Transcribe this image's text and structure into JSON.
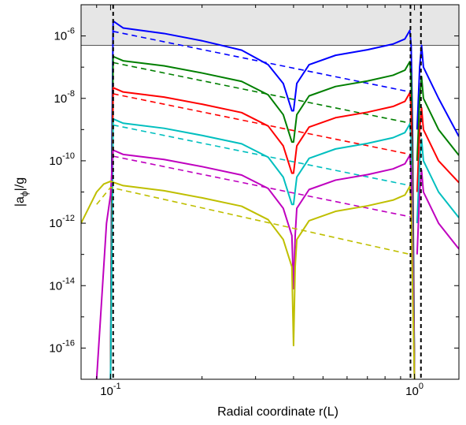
{
  "chart_data": {
    "type": "line",
    "title": "",
    "xlabel": "Radial coordinate r(L)",
    "ylabel": {
      "main": "|a",
      "sub": "ϕ",
      "tail": "|/g"
    },
    "xscale": "log",
    "yscale": "log",
    "xlim": [
      0.08,
      1.4
    ],
    "ylim": [
      1e-17,
      1e-05
    ],
    "xticks": [
      {
        "value": 0.1,
        "base": "10",
        "exp": "-1"
      },
      {
        "value": 1,
        "base": "10",
        "exp": "0"
      }
    ],
    "yticks": [
      {
        "value": 1e-06,
        "base": "10",
        "exp": "-6"
      },
      {
        "value": 1e-08,
        "base": "10",
        "exp": "-8"
      },
      {
        "value": 1e-10,
        "base": "10",
        "exp": "-10"
      },
      {
        "value": 1e-12,
        "base": "10",
        "exp": "-12"
      },
      {
        "value": 1e-14,
        "base": "10",
        "exp": "-14"
      },
      {
        "value": 1e-16,
        "base": "10",
        "exp": "-16"
      }
    ],
    "shaded_region": {
      "y_from": 5e-07,
      "y_to": 1e-05,
      "color": "#e6e6e6"
    },
    "vertical_lines": [
      0.102,
      0.97,
      1.05
    ],
    "series": [
      {
        "color": "#0000ff",
        "style": "solid",
        "points": [
          [
            0.1,
            1e-17
          ],
          [
            0.101,
            2e-10
          ],
          [
            0.102,
            3e-06
          ],
          [
            0.11,
            1.8e-06
          ],
          [
            0.15,
            1.2e-06
          ],
          [
            0.2,
            7e-07
          ],
          [
            0.27,
            3.5e-07
          ],
          [
            0.33,
            1.2e-07
          ],
          [
            0.37,
            3e-08
          ],
          [
            0.395,
            4e-09
          ],
          [
            0.4,
            4e-09
          ],
          [
            0.41,
            3e-08
          ],
          [
            0.45,
            1.2e-07
          ],
          [
            0.55,
            2.4e-07
          ],
          [
            0.7,
            3.6e-07
          ],
          [
            0.85,
            5.5e-07
          ],
          [
            0.93,
            8e-07
          ],
          [
            0.965,
            1.5e-06
          ],
          [
            0.975,
            5e-07
          ],
          [
            0.985,
            1e-09
          ],
          [
            1.0,
            1e-17
          ]
        ]
      },
      {
        "color": "#0000ff",
        "style": "solid",
        "points": [
          [
            1.02,
            1e-09
          ],
          [
            1.04,
            1e-07
          ],
          [
            1.055,
            5e-07
          ],
          [
            1.07,
            1e-07
          ],
          [
            1.2,
            1e-08
          ],
          [
            1.4,
            6e-10
          ]
        ]
      },
      {
        "color": "#0000ff",
        "style": "dashed",
        "points": [
          [
            0.102,
            1.4e-06
          ],
          [
            0.97,
            1.6e-08
          ]
        ]
      },
      {
        "color": "#007f00",
        "style": "solid",
        "points": [
          [
            0.1,
            1e-17
          ],
          [
            0.101,
            1e-11
          ],
          [
            0.102,
            2.2e-07
          ],
          [
            0.11,
            1.6e-07
          ],
          [
            0.15,
            1.1e-07
          ],
          [
            0.2,
            6.5e-08
          ],
          [
            0.27,
            3.5e-08
          ],
          [
            0.33,
            1.3e-08
          ],
          [
            0.37,
            3e-09
          ],
          [
            0.395,
            4e-10
          ],
          [
            0.4,
            4e-10
          ],
          [
            0.41,
            3e-09
          ],
          [
            0.45,
            1.2e-08
          ],
          [
            0.55,
            2.4e-08
          ],
          [
            0.7,
            3.6e-08
          ],
          [
            0.85,
            5.5e-08
          ],
          [
            0.93,
            8e-08
          ],
          [
            0.965,
            1.5e-07
          ],
          [
            0.975,
            5e-08
          ],
          [
            0.985,
            1e-10
          ],
          [
            1.0,
            1e-17
          ]
        ]
      },
      {
        "color": "#007f00",
        "style": "solid",
        "points": [
          [
            1.02,
            1e-10
          ],
          [
            1.04,
            1e-08
          ],
          [
            1.055,
            5e-08
          ],
          [
            1.07,
            1e-08
          ],
          [
            1.2,
            1e-09
          ],
          [
            1.4,
            1.5e-10
          ]
        ]
      },
      {
        "color": "#007f00",
        "style": "dashed",
        "points": [
          [
            0.102,
            1.4e-07
          ],
          [
            0.97,
            1.6e-09
          ]
        ]
      },
      {
        "color": "#ff0000",
        "style": "solid",
        "points": [
          [
            0.1,
            1e-17
          ],
          [
            0.101,
            1e-12
          ],
          [
            0.102,
            2.2e-08
          ],
          [
            0.11,
            1.6e-08
          ],
          [
            0.15,
            1.1e-08
          ],
          [
            0.2,
            6.5e-09
          ],
          [
            0.27,
            3.5e-09
          ],
          [
            0.33,
            1.3e-09
          ],
          [
            0.37,
            3e-10
          ],
          [
            0.395,
            4e-11
          ],
          [
            0.4,
            4e-11
          ],
          [
            0.41,
            3e-10
          ],
          [
            0.45,
            1.2e-09
          ],
          [
            0.55,
            2.4e-09
          ],
          [
            0.7,
            3.6e-09
          ],
          [
            0.85,
            5.5e-09
          ],
          [
            0.93,
            8e-09
          ],
          [
            0.965,
            1.5e-08
          ],
          [
            0.975,
            5e-09
          ],
          [
            0.985,
            1e-11
          ],
          [
            1.0,
            1e-17
          ]
        ]
      },
      {
        "color": "#ff0000",
        "style": "solid",
        "points": [
          [
            1.02,
            1e-11
          ],
          [
            1.04,
            1e-09
          ],
          [
            1.055,
            5e-09
          ],
          [
            1.07,
            1e-09
          ],
          [
            1.2,
            1e-10
          ],
          [
            1.4,
            2e-11
          ]
        ]
      },
      {
        "color": "#ff0000",
        "style": "dashed",
        "points": [
          [
            0.102,
            1.4e-08
          ],
          [
            0.97,
            1.6e-10
          ]
        ]
      },
      {
        "color": "#00bfbf",
        "style": "solid",
        "points": [
          [
            0.1,
            1e-17
          ],
          [
            0.101,
            1e-13
          ],
          [
            0.102,
            2.2e-09
          ],
          [
            0.11,
            1.6e-09
          ],
          [
            0.15,
            1.1e-09
          ],
          [
            0.2,
            6.5e-10
          ],
          [
            0.27,
            3.5e-10
          ],
          [
            0.33,
            1.3e-10
          ],
          [
            0.37,
            3e-11
          ],
          [
            0.395,
            4e-12
          ],
          [
            0.4,
            4e-12
          ],
          [
            0.41,
            3e-11
          ],
          [
            0.45,
            1.2e-10
          ],
          [
            0.55,
            2.4e-10
          ],
          [
            0.7,
            3.6e-10
          ],
          [
            0.85,
            5.5e-10
          ],
          [
            0.93,
            8e-10
          ],
          [
            0.965,
            1.5e-09
          ],
          [
            0.975,
            5e-10
          ],
          [
            0.985,
            1e-12
          ],
          [
            1.0,
            1e-17
          ]
        ]
      },
      {
        "color": "#00bfbf",
        "style": "solid",
        "points": [
          [
            1.02,
            1e-12
          ],
          [
            1.04,
            1e-10
          ],
          [
            1.055,
            5e-10
          ],
          [
            1.07,
            1e-10
          ],
          [
            1.2,
            1e-11
          ],
          [
            1.4,
            1.5e-12
          ]
        ]
      },
      {
        "color": "#00bfbf",
        "style": "dashed",
        "points": [
          [
            0.102,
            1.4e-09
          ],
          [
            0.97,
            1.6e-11
          ]
        ]
      },
      {
        "color": "#bf00bf",
        "style": "solid",
        "points": [
          [
            0.09,
            1e-17
          ],
          [
            0.097,
            1e-12
          ],
          [
            0.1,
            8e-12
          ],
          [
            0.102,
            2.2e-10
          ],
          [
            0.11,
            1.6e-10
          ],
          [
            0.15,
            1.1e-10
          ],
          [
            0.2,
            6.5e-11
          ],
          [
            0.27,
            3.5e-11
          ],
          [
            0.33,
            1.3e-11
          ],
          [
            0.37,
            3e-12
          ],
          [
            0.395,
            4e-13
          ],
          [
            0.4,
            8e-15
          ],
          [
            0.405,
            4e-13
          ],
          [
            0.41,
            3e-12
          ],
          [
            0.45,
            1.2e-11
          ],
          [
            0.55,
            2.4e-11
          ],
          [
            0.7,
            3.6e-11
          ],
          [
            0.85,
            5.5e-11
          ],
          [
            0.93,
            8e-11
          ],
          [
            0.965,
            1.5e-10
          ],
          [
            0.975,
            5e-11
          ],
          [
            0.985,
            1e-13
          ],
          [
            1.0,
            1e-17
          ]
        ]
      },
      {
        "color": "#bf00bf",
        "style": "solid",
        "points": [
          [
            1.02,
            1e-13
          ],
          [
            1.04,
            1e-11
          ],
          [
            1.055,
            5e-11
          ],
          [
            1.07,
            1e-11
          ],
          [
            1.2,
            1e-12
          ],
          [
            1.4,
            1.5e-13
          ]
        ]
      },
      {
        "color": "#bf00bf",
        "style": "dashed",
        "points": [
          [
            0.102,
            1.4e-10
          ],
          [
            0.97,
            1.6e-12
          ]
        ]
      },
      {
        "color": "#bfbf00",
        "style": "solid",
        "points": [
          [
            0.08,
            1e-12
          ],
          [
            0.09,
            1e-11
          ],
          [
            0.095,
            1.8e-11
          ],
          [
            0.1,
            2.2e-11
          ],
          [
            0.11,
            1.6e-11
          ],
          [
            0.15,
            1.1e-11
          ],
          [
            0.2,
            6.5e-12
          ],
          [
            0.27,
            3.5e-12
          ],
          [
            0.33,
            1.3e-12
          ],
          [
            0.37,
            3e-13
          ],
          [
            0.395,
            4e-14
          ],
          [
            0.4,
            1.2e-16
          ],
          [
            0.405,
            4e-14
          ],
          [
            0.41,
            3e-13
          ],
          [
            0.45,
            1.2e-12
          ],
          [
            0.55,
            2.4e-12
          ],
          [
            0.7,
            3.6e-12
          ],
          [
            0.85,
            5.5e-12
          ],
          [
            0.93,
            8e-12
          ],
          [
            0.965,
            1.5e-11
          ],
          [
            0.975,
            5e-12
          ],
          [
            0.985,
            1e-14
          ],
          [
            1.0,
            1e-17
          ]
        ]
      },
      {
        "color": "#bfbf00",
        "style": "dashed",
        "points": [
          [
            0.09,
            4e-12
          ],
          [
            0.1,
            1.4e-11
          ],
          [
            0.97,
            1e-13
          ]
        ]
      }
    ]
  }
}
